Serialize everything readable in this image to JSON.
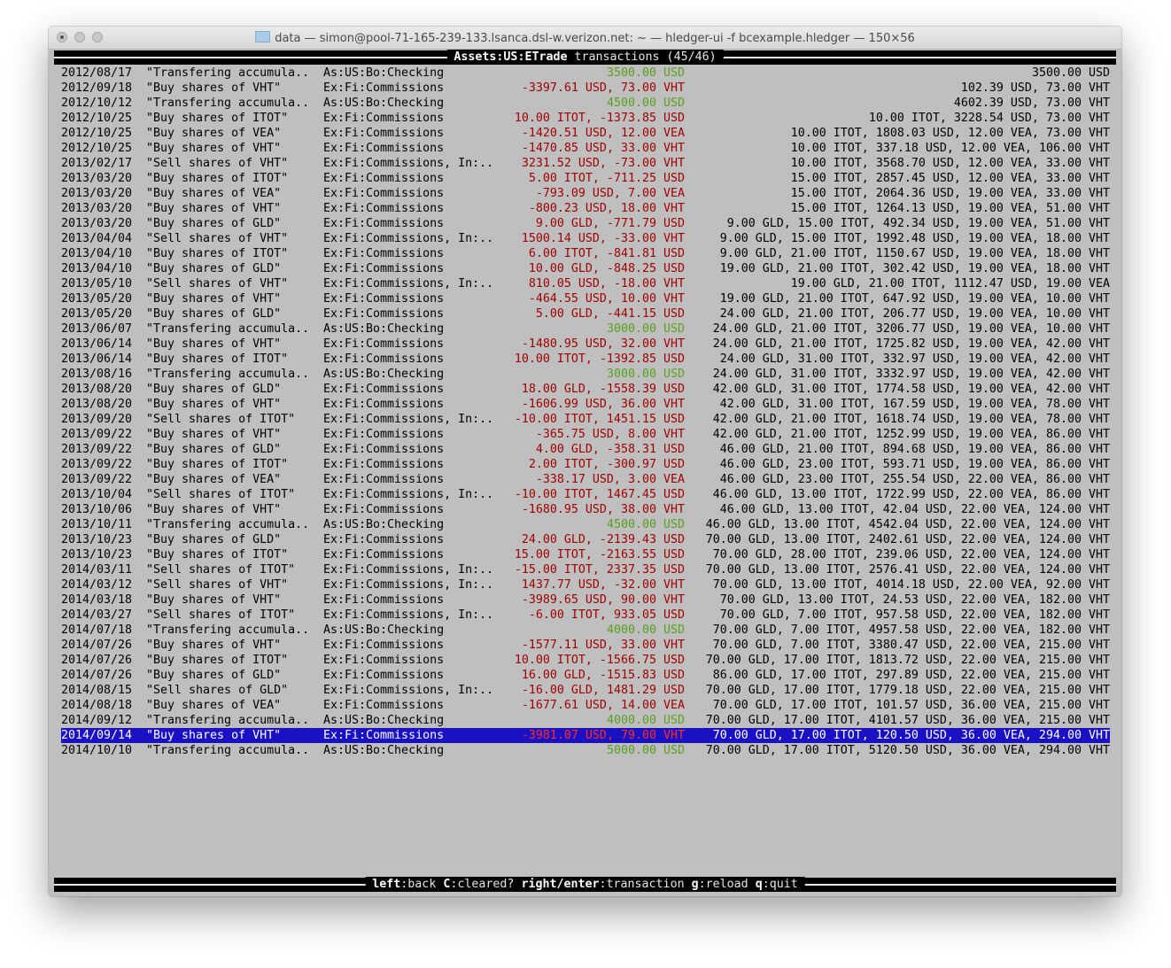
{
  "window": {
    "title": "data — simon@pool-71-165-239-133.lsanca.dsl-w.verizon.net: ~ — hledger-ui -f bcexample.hledger — 150×56"
  },
  "header": {
    "account": "Assets:US:ETrade",
    "suffix": " transactions (45/46)"
  },
  "colors": {
    "positive": "#5aa01e",
    "negative": "#a00000",
    "selection": "#1a10c4",
    "background": "#bfbfbf"
  },
  "selected_index": 44,
  "rows": [
    [
      "2012/08/17",
      "\"Transfering accumula..",
      "As:US:Bo:Checking",
      "3500.00 USD",
      "3500.00 USD"
    ],
    [
      "2012/09/18",
      "\"Buy shares of VHT\"",
      "Ex:Fi:Commissions",
      "-3397.61 USD, 73.00 VHT",
      "102.39 USD, 73.00 VHT"
    ],
    [
      "2012/10/12",
      "\"Transfering accumula..",
      "As:US:Bo:Checking",
      "4500.00 USD",
      "4602.39 USD, 73.00 VHT"
    ],
    [
      "2012/10/25",
      "\"Buy shares of ITOT\"",
      "Ex:Fi:Commissions",
      "10.00 ITOT, -1373.85 USD",
      "10.00 ITOT, 3228.54 USD, 73.00 VHT"
    ],
    [
      "2012/10/25",
      "\"Buy shares of VEA\"",
      "Ex:Fi:Commissions",
      "-1420.51 USD, 12.00 VEA",
      "10.00 ITOT, 1808.03 USD, 12.00 VEA, 73.00 VHT"
    ],
    [
      "2012/10/25",
      "\"Buy shares of VHT\"",
      "Ex:Fi:Commissions",
      "-1470.85 USD, 33.00 VHT",
      "10.00 ITOT, 337.18 USD, 12.00 VEA, 106.00 VHT"
    ],
    [
      "2013/02/17",
      "\"Sell shares of VHT\"",
      "Ex:Fi:Commissions, In:..",
      "3231.52 USD, -73.00 VHT",
      "10.00 ITOT, 3568.70 USD, 12.00 VEA, 33.00 VHT"
    ],
    [
      "2013/03/20",
      "\"Buy shares of ITOT\"",
      "Ex:Fi:Commissions",
      "5.00 ITOT, -711.25 USD",
      "15.00 ITOT, 2857.45 USD, 12.00 VEA, 33.00 VHT"
    ],
    [
      "2013/03/20",
      "\"Buy shares of VEA\"",
      "Ex:Fi:Commissions",
      "-793.09 USD, 7.00 VEA",
      "15.00 ITOT, 2064.36 USD, 19.00 VEA, 33.00 VHT"
    ],
    [
      "2013/03/20",
      "\"Buy shares of VHT\"",
      "Ex:Fi:Commissions",
      "-800.23 USD, 18.00 VHT",
      "15.00 ITOT, 1264.13 USD, 19.00 VEA, 51.00 VHT"
    ],
    [
      "2013/03/20",
      "\"Buy shares of GLD\"",
      "Ex:Fi:Commissions",
      "9.00 GLD, -771.79 USD",
      "9.00 GLD, 15.00 ITOT, 492.34 USD, 19.00 VEA, 51.00 VHT"
    ],
    [
      "2013/04/04",
      "\"Sell shares of VHT\"",
      "Ex:Fi:Commissions, In:..",
      "1500.14 USD, -33.00 VHT",
      "9.00 GLD, 15.00 ITOT, 1992.48 USD, 19.00 VEA, 18.00 VHT"
    ],
    [
      "2013/04/10",
      "\"Buy shares of ITOT\"",
      "Ex:Fi:Commissions",
      "6.00 ITOT, -841.81 USD",
      "9.00 GLD, 21.00 ITOT, 1150.67 USD, 19.00 VEA, 18.00 VHT"
    ],
    [
      "2013/04/10",
      "\"Buy shares of GLD\"",
      "Ex:Fi:Commissions",
      "10.00 GLD, -848.25 USD",
      "19.00 GLD, 21.00 ITOT, 302.42 USD, 19.00 VEA, 18.00 VHT"
    ],
    [
      "2013/05/10",
      "\"Sell shares of VHT\"",
      "Ex:Fi:Commissions, In:..",
      "810.05 USD, -18.00 VHT",
      "19.00 GLD, 21.00 ITOT, 1112.47 USD, 19.00 VEA"
    ],
    [
      "2013/05/20",
      "\"Buy shares of VHT\"",
      "Ex:Fi:Commissions",
      "-464.55 USD, 10.00 VHT",
      "19.00 GLD, 21.00 ITOT, 647.92 USD, 19.00 VEA, 10.00 VHT"
    ],
    [
      "2013/05/20",
      "\"Buy shares of GLD\"",
      "Ex:Fi:Commissions",
      "5.00 GLD, -441.15 USD",
      "24.00 GLD, 21.00 ITOT, 206.77 USD, 19.00 VEA, 10.00 VHT"
    ],
    [
      "2013/06/07",
      "\"Transfering accumula..",
      "As:US:Bo:Checking",
      "3000.00 USD",
      "24.00 GLD, 21.00 ITOT, 3206.77 USD, 19.00 VEA, 10.00 VHT"
    ],
    [
      "2013/06/14",
      "\"Buy shares of VHT\"",
      "Ex:Fi:Commissions",
      "-1480.95 USD, 32.00 VHT",
      "24.00 GLD, 21.00 ITOT, 1725.82 USD, 19.00 VEA, 42.00 VHT"
    ],
    [
      "2013/06/14",
      "\"Buy shares of ITOT\"",
      "Ex:Fi:Commissions",
      "10.00 ITOT, -1392.85 USD",
      "24.00 GLD, 31.00 ITOT, 332.97 USD, 19.00 VEA, 42.00 VHT"
    ],
    [
      "2013/08/16",
      "\"Transfering accumula..",
      "As:US:Bo:Checking",
      "3000.00 USD",
      "24.00 GLD, 31.00 ITOT, 3332.97 USD, 19.00 VEA, 42.00 VHT"
    ],
    [
      "2013/08/20",
      "\"Buy shares of GLD\"",
      "Ex:Fi:Commissions",
      "18.00 GLD, -1558.39 USD",
      "42.00 GLD, 31.00 ITOT, 1774.58 USD, 19.00 VEA, 42.00 VHT"
    ],
    [
      "2013/08/20",
      "\"Buy shares of VHT\"",
      "Ex:Fi:Commissions",
      "-1606.99 USD, 36.00 VHT",
      "42.00 GLD, 31.00 ITOT, 167.59 USD, 19.00 VEA, 78.00 VHT"
    ],
    [
      "2013/09/20",
      "\"Sell shares of ITOT\"",
      "Ex:Fi:Commissions, In:..",
      "-10.00 ITOT, 1451.15 USD",
      "42.00 GLD, 21.00 ITOT, 1618.74 USD, 19.00 VEA, 78.00 VHT"
    ],
    [
      "2013/09/22",
      "\"Buy shares of VHT\"",
      "Ex:Fi:Commissions",
      "-365.75 USD, 8.00 VHT",
      "42.00 GLD, 21.00 ITOT, 1252.99 USD, 19.00 VEA, 86.00 VHT"
    ],
    [
      "2013/09/22",
      "\"Buy shares of GLD\"",
      "Ex:Fi:Commissions",
      "4.00 GLD, -358.31 USD",
      "46.00 GLD, 21.00 ITOT, 894.68 USD, 19.00 VEA, 86.00 VHT"
    ],
    [
      "2013/09/22",
      "\"Buy shares of ITOT\"",
      "Ex:Fi:Commissions",
      "2.00 ITOT, -300.97 USD",
      "46.00 GLD, 23.00 ITOT, 593.71 USD, 19.00 VEA, 86.00 VHT"
    ],
    [
      "2013/09/22",
      "\"Buy shares of VEA\"",
      "Ex:Fi:Commissions",
      "-338.17 USD, 3.00 VEA",
      "46.00 GLD, 23.00 ITOT, 255.54 USD, 22.00 VEA, 86.00 VHT"
    ],
    [
      "2013/10/04",
      "\"Sell shares of ITOT\"",
      "Ex:Fi:Commissions, In:..",
      "-10.00 ITOT, 1467.45 USD",
      "46.00 GLD, 13.00 ITOT, 1722.99 USD, 22.00 VEA, 86.00 VHT"
    ],
    [
      "2013/10/06",
      "\"Buy shares of VHT\"",
      "Ex:Fi:Commissions",
      "-1680.95 USD, 38.00 VHT",
      "46.00 GLD, 13.00 ITOT, 42.04 USD, 22.00 VEA, 124.00 VHT"
    ],
    [
      "2013/10/11",
      "\"Transfering accumula..",
      "As:US:Bo:Checking",
      "4500.00 USD",
      "46.00 GLD, 13.00 ITOT, 4542.04 USD, 22.00 VEA, 124.00 VHT"
    ],
    [
      "2013/10/23",
      "\"Buy shares of GLD\"",
      "Ex:Fi:Commissions",
      "24.00 GLD, -2139.43 USD",
      "70.00 GLD, 13.00 ITOT, 2402.61 USD, 22.00 VEA, 124.00 VHT"
    ],
    [
      "2013/10/23",
      "\"Buy shares of ITOT\"",
      "Ex:Fi:Commissions",
      "15.00 ITOT, -2163.55 USD",
      "70.00 GLD, 28.00 ITOT, 239.06 USD, 22.00 VEA, 124.00 VHT"
    ],
    [
      "2014/03/11",
      "\"Sell shares of ITOT\"",
      "Ex:Fi:Commissions, In:..",
      "-15.00 ITOT, 2337.35 USD",
      "70.00 GLD, 13.00 ITOT, 2576.41 USD, 22.00 VEA, 124.00 VHT"
    ],
    [
      "2014/03/12",
      "\"Sell shares of VHT\"",
      "Ex:Fi:Commissions, In:..",
      "1437.77 USD, -32.00 VHT",
      "70.00 GLD, 13.00 ITOT, 4014.18 USD, 22.00 VEA, 92.00 VHT"
    ],
    [
      "2014/03/18",
      "\"Buy shares of VHT\"",
      "Ex:Fi:Commissions",
      "-3989.65 USD, 90.00 VHT",
      "70.00 GLD, 13.00 ITOT, 24.53 USD, 22.00 VEA, 182.00 VHT"
    ],
    [
      "2014/03/27",
      "\"Sell shares of ITOT\"",
      "Ex:Fi:Commissions, In:..",
      "-6.00 ITOT, 933.05 USD",
      "70.00 GLD, 7.00 ITOT, 957.58 USD, 22.00 VEA, 182.00 VHT"
    ],
    [
      "2014/07/18",
      "\"Transfering accumula..",
      "As:US:Bo:Checking",
      "4000.00 USD",
      "70.00 GLD, 7.00 ITOT, 4957.58 USD, 22.00 VEA, 182.00 VHT"
    ],
    [
      "2014/07/26",
      "\"Buy shares of VHT\"",
      "Ex:Fi:Commissions",
      "-1577.11 USD, 33.00 VHT",
      "70.00 GLD, 7.00 ITOT, 3380.47 USD, 22.00 VEA, 215.00 VHT"
    ],
    [
      "2014/07/26",
      "\"Buy shares of ITOT\"",
      "Ex:Fi:Commissions",
      "10.00 ITOT, -1566.75 USD",
      "70.00 GLD, 17.00 ITOT, 1813.72 USD, 22.00 VEA, 215.00 VHT"
    ],
    [
      "2014/07/26",
      "\"Buy shares of GLD\"",
      "Ex:Fi:Commissions",
      "16.00 GLD, -1515.83 USD",
      "86.00 GLD, 17.00 ITOT, 297.89 USD, 22.00 VEA, 215.00 VHT"
    ],
    [
      "2014/08/15",
      "\"Sell shares of GLD\"",
      "Ex:Fi:Commissions, In:..",
      "-16.00 GLD, 1481.29 USD",
      "70.00 GLD, 17.00 ITOT, 1779.18 USD, 22.00 VEA, 215.00 VHT"
    ],
    [
      "2014/08/18",
      "\"Buy shares of VEA\"",
      "Ex:Fi:Commissions",
      "-1677.61 USD, 14.00 VEA",
      "70.00 GLD, 17.00 ITOT, 101.57 USD, 36.00 VEA, 215.00 VHT"
    ],
    [
      "2014/09/12",
      "\"Transfering accumula..",
      "As:US:Bo:Checking",
      "4000.00 USD",
      "70.00 GLD, 17.00 ITOT, 4101.57 USD, 36.00 VEA, 215.00 VHT"
    ],
    [
      "2014/09/14",
      "\"Buy shares of VHT\"",
      "Ex:Fi:Commissions",
      "-3981.07 USD, 79.00 VHT",
      "70.00 GLD, 17.00 ITOT, 120.50 USD, 36.00 VEA, 294.00 VHT"
    ],
    [
      "2014/10/10",
      "\"Transfering accumula..",
      "As:US:Bo:Checking",
      "5000.00 USD",
      "70.00 GLD, 17.00 ITOT, 5120.50 USD, 36.00 VEA, 294.00 VHT"
    ]
  ],
  "footer": {
    "keys": [
      {
        "key": "left",
        "action": "back"
      },
      {
        "key": "C",
        "action": "cleared?"
      },
      {
        "key": "right/enter",
        "action": "transaction"
      },
      {
        "key": "g",
        "action": "reload"
      },
      {
        "key": "q",
        "action": "quit"
      }
    ]
  }
}
